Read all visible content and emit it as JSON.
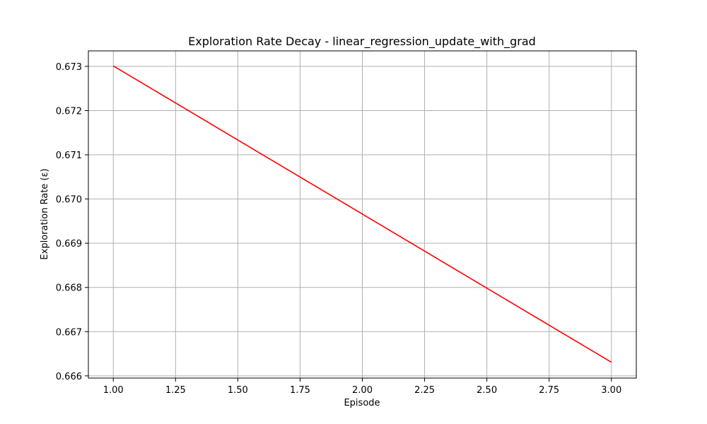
{
  "chart_data": {
    "type": "line",
    "title": "Exploration Rate Decay - linear_regression_update_with_grad",
    "xlabel": "Episode",
    "ylabel": "Exploration Rate (ε)",
    "xlim": [
      0.9,
      3.1
    ],
    "ylim": [
      0.66595,
      0.67335
    ],
    "grid": true,
    "x_ticks": [
      1.0,
      1.25,
      1.5,
      1.75,
      2.0,
      2.25,
      2.5,
      2.75,
      3.0
    ],
    "x_tick_labels": [
      "1.00",
      "1.25",
      "1.50",
      "1.75",
      "2.00",
      "2.25",
      "2.50",
      "2.75",
      "3.00"
    ],
    "y_ticks": [
      0.666,
      0.667,
      0.668,
      0.669,
      0.67,
      0.671,
      0.672,
      0.673
    ],
    "y_tick_labels": [
      "0.666",
      "0.667",
      "0.668",
      "0.669",
      "0.670",
      "0.671",
      "0.672",
      "0.673"
    ],
    "series": [
      {
        "name": "Exploration Rate",
        "color": "#ff0000",
        "x": [
          1,
          2,
          3
        ],
        "y": [
          0.67301,
          0.669659,
          0.666308
        ]
      }
    ]
  }
}
